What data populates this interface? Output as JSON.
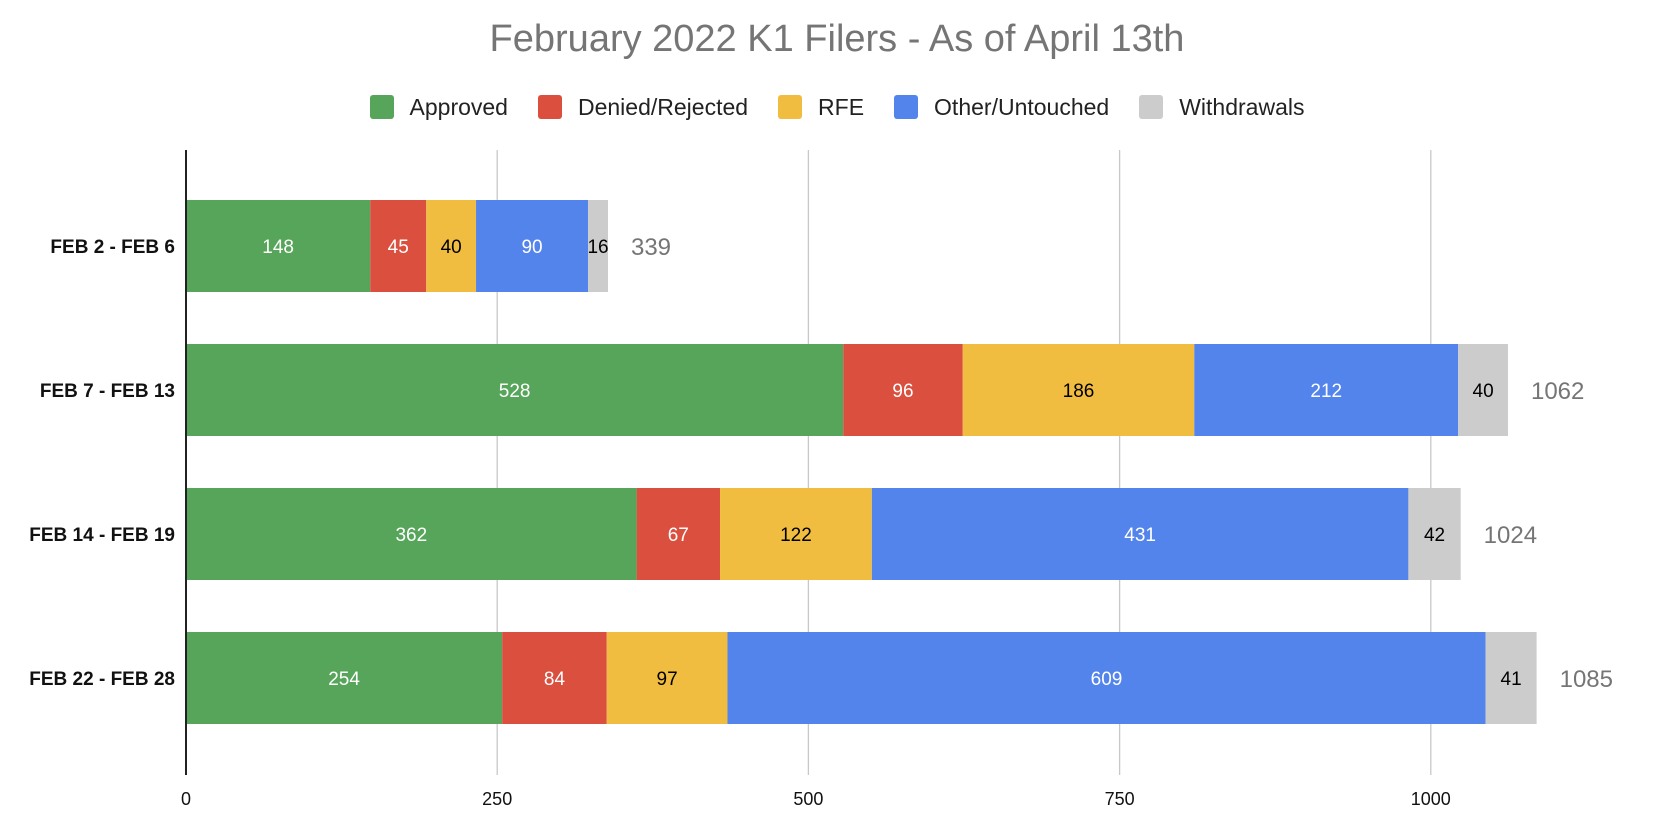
{
  "chart_data": {
    "type": "bar",
    "orientation": "horizontal",
    "stacked": true,
    "title": "February 2022 K1 Filers - As of April 13th",
    "categories": [
      "FEB 2 - FEB 6",
      "FEB 7 - FEB 13",
      "FEB 14 - FEB 19",
      "FEB 22 - FEB 28"
    ],
    "series": [
      {
        "name": "Approved",
        "color": "#57a55a",
        "label_color": "#ffffff",
        "values": [
          148,
          528,
          362,
          254
        ]
      },
      {
        "name": "Denied/Rejected",
        "color": "#db4f3f",
        "label_color": "#ffffff",
        "values": [
          45,
          96,
          67,
          84
        ]
      },
      {
        "name": "RFE",
        "color": "#f1bd41",
        "label_color": "#000000",
        "values": [
          40,
          186,
          122,
          97
        ]
      },
      {
        "name": "Other/Untouched",
        "color": "#5384ec",
        "label_color": "#ffffff",
        "values": [
          90,
          212,
          431,
          609
        ]
      },
      {
        "name": "Withdrawals",
        "color": "#cccccc",
        "label_color": "#000000",
        "values": [
          16,
          40,
          42,
          41
        ]
      }
    ],
    "totals": [
      "339",
      "1062",
      "1024",
      "1085"
    ],
    "xlim": [
      0,
      1100
    ],
    "xticks": [
      "0",
      "250",
      "500",
      "750",
      "1000"
    ],
    "xtick_values": [
      0,
      250,
      500,
      750,
      1000
    ],
    "grid": true,
    "legend_position": "top"
  }
}
